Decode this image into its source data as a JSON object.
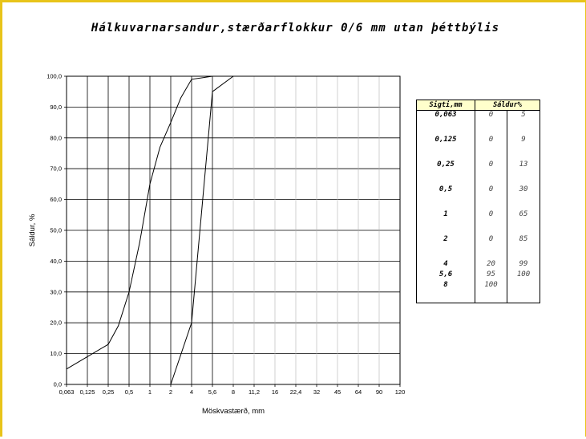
{
  "chart_data": {
    "type": "line",
    "title": "Hálkuvarnarsandur,stærðarflokkur 0/6 mm utan þéttbýlis",
    "xlabel": "Möskvastærð, mm",
    "ylabel": "Sáldur, %",
    "x_ticks": [
      "0,063",
      "0,125",
      "0,25",
      "0,5",
      "1",
      "2",
      "4",
      "5,6",
      "8",
      "11,2",
      "16",
      "22,4",
      "32",
      "45",
      "64",
      "90",
      "120"
    ],
    "y_ticks": [
      "0,0",
      "10,0",
      "20,0",
      "30,0",
      "40,0",
      "50,0",
      "60,0",
      "70,0",
      "80,0",
      "90,0",
      "100,0"
    ],
    "ylim": [
      0,
      100
    ],
    "grid": true,
    "series": [
      {
        "points": [
          [
            0.063,
            5
          ],
          [
            0.125,
            9
          ],
          [
            0.25,
            13
          ],
          [
            0.35,
            19
          ],
          [
            0.5,
            30
          ],
          [
            0.71,
            46
          ],
          [
            1,
            65
          ],
          [
            1.4,
            77
          ],
          [
            2,
            85
          ],
          [
            2.8,
            93
          ],
          [
            4,
            99
          ],
          [
            5.6,
            100
          ]
        ]
      },
      {
        "points": [
          [
            2,
            0
          ],
          [
            4,
            20
          ],
          [
            5.6,
            95
          ],
          [
            8,
            100
          ]
        ]
      }
    ]
  },
  "table": {
    "headers": {
      "size": "Sigti,mm",
      "passing": "Sáldur%"
    },
    "rows": [
      {
        "size": "0,063",
        "a": "0",
        "b": "5"
      },
      {
        "size": "0,125",
        "a": "0",
        "b": "9"
      },
      {
        "size": "0,25",
        "a": "0",
        "b": "13"
      },
      {
        "size": "0,5",
        "a": "0",
        "b": "30"
      },
      {
        "size": "1",
        "a": "0",
        "b": "65"
      },
      {
        "size": "2",
        "a": "0",
        "b": "85"
      },
      {
        "size": "4",
        "a": "20",
        "b": "99"
      },
      {
        "size": "5,6",
        "a": "95",
        "b": "100"
      },
      {
        "size": "8",
        "a": "100",
        "b": ""
      }
    ]
  }
}
